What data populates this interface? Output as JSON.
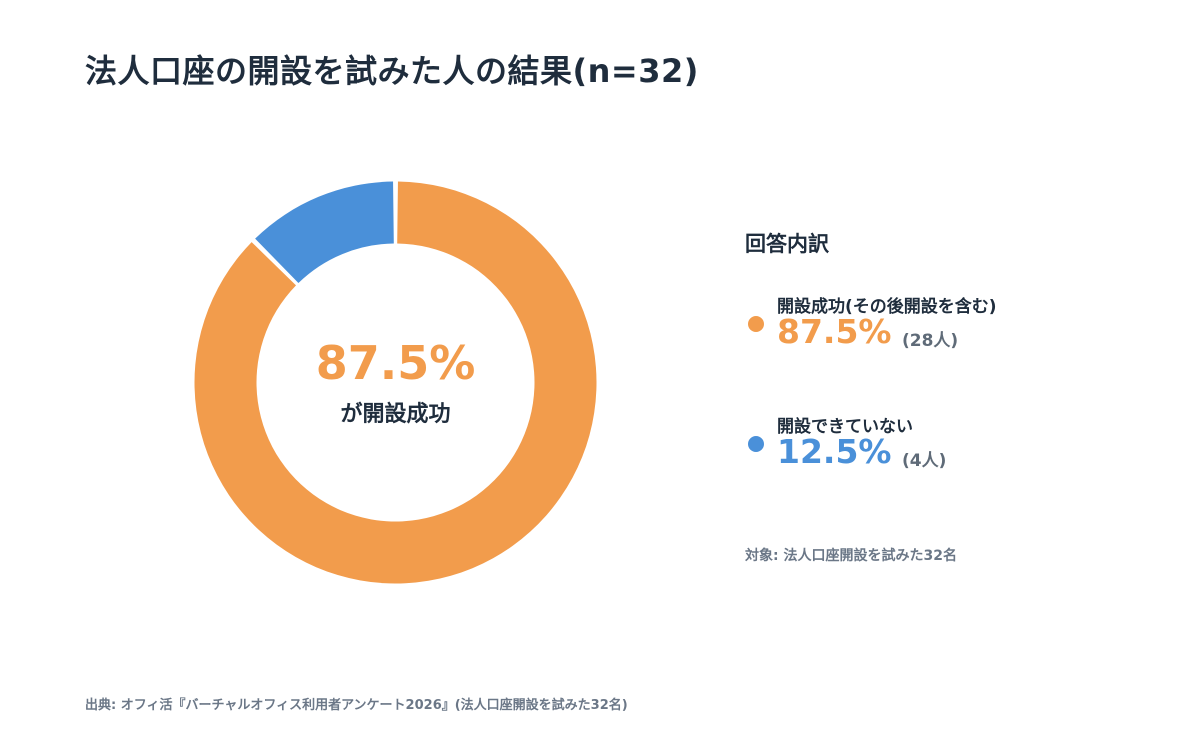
{
  "title": "法人口座の開設を試みた人の結果(n=32)",
  "center": {
    "percent": "87.5%",
    "label": "が開設成功"
  },
  "legend": {
    "heading": "回答内訳",
    "items": [
      {
        "label": "開設成功(その後開設を含む)",
        "percent": "87.5%",
        "count": "(28人)",
        "color": "#f29c4c"
      },
      {
        "label": "開設できていない",
        "percent": "12.5%",
        "count": "(4人)",
        "color": "#4a90d9"
      }
    ]
  },
  "target": "対象: 法人口座開設を試みた32名",
  "source": "出典: オフィ活『バーチャルオフィス利用者アンケート2026』(法人口座開設を試みた32名)",
  "chart_data": {
    "type": "pie",
    "variant": "donut",
    "title": "法人口座の開設を試みた人の結果(n=32)",
    "categories": [
      "開設成功(その後開設を含む)",
      "開設できていない"
    ],
    "values": [
      87.5,
      12.5
    ],
    "counts": [
      28,
      4
    ],
    "colors": [
      "#f29c4c",
      "#4a90d9"
    ],
    "legend_position": "right"
  }
}
